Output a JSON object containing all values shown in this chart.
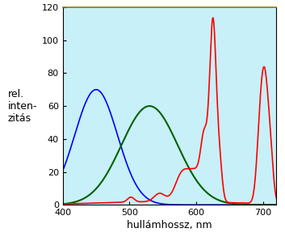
{
  "title": "",
  "xlabel": "hullámhossz, nm",
  "ylabel": "rel.\ninten-\nzitás",
  "xlim": [
    400,
    720
  ],
  "ylim": [
    0,
    120
  ],
  "xticks": [
    400,
    500,
    600,
    700
  ],
  "yticks": [
    0,
    20,
    40,
    60,
    80,
    100,
    120
  ],
  "bg_color": "#c8f0f8",
  "red_color": "#ff0000",
  "blue_color": "#0000ff",
  "green_color": "#006000",
  "figsize": [
    3.53,
    2.98
  ],
  "dpi": 100
}
